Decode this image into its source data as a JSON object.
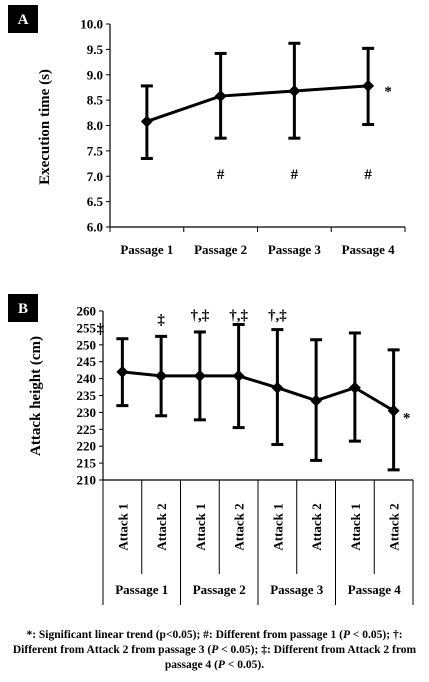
{
  "chart_data": [
    {
      "panel_label": "A",
      "type": "line",
      "categories": [
        "Passage 1",
        "Passage 2",
        "Passage 3",
        "Passage 4"
      ],
      "series": [
        {
          "values": [
            8.08,
            8.58,
            8.68,
            8.78
          ],
          "error_upper": [
            8.78,
            9.42,
            9.62,
            9.52
          ],
          "error_lower": [
            7.35,
            7.75,
            7.75,
            8.02
          ]
        }
      ],
      "ylabel": "Execution time (s)",
      "ylim": [
        6.0,
        10.0
      ],
      "yticks": [
        "6.0",
        "6.5",
        "7.0",
        "7.5",
        "8.0",
        "8.5",
        "9.0",
        "9.5",
        "10.0"
      ],
      "below_markers": [
        "",
        "#",
        "#",
        "#"
      ],
      "trend_marker": "*",
      "grid": false
    },
    {
      "panel_label": "B",
      "type": "line",
      "categories": [
        "Attack 1",
        "Attack 2",
        "Attack 1",
        "Attack 2",
        "Attack 1",
        "Attack 2",
        "Attack 1",
        "Attack 2"
      ],
      "groups": [
        "Passage 1",
        "Passage 2",
        "Passage 3",
        "Passage 4"
      ],
      "series": [
        {
          "values": [
            242,
            240.8,
            240.8,
            240.8,
            237.3,
            233.5,
            237.3,
            230.5
          ],
          "error_upper": [
            251.8,
            252.5,
            253.8,
            256,
            254.5,
            251.5,
            253.5,
            248.5
          ],
          "error_lower": [
            232,
            229,
            227.8,
            225.5,
            220.5,
            215.8,
            221.5,
            213
          ]
        }
      ],
      "ylabel": "Attack height (cm)",
      "ylim": [
        210,
        260
      ],
      "yticks": [
        "210",
        "215",
        "220",
        "225",
        "230",
        "235",
        "240",
        "245",
        "250",
        "255",
        "260"
      ],
      "above_markers": [
        "‡",
        "‡",
        "†,‡",
        "†,‡",
        "†,‡",
        "",
        "",
        ""
      ],
      "trend_marker": "*",
      "grid": false
    }
  ],
  "caption": {
    "part1": "*: Significant linear trend (p<0.05); #: Different from passage 1 (",
    "p1": "P",
    "part2": " < 0.05); †: Different from Attack 2 from passage 3 (",
    "p2": "P",
    "part3": " < 0.05); ‡: Different from Attack 2 from passage 4 (",
    "p3": "P",
    "part4": " < 0.05)."
  }
}
